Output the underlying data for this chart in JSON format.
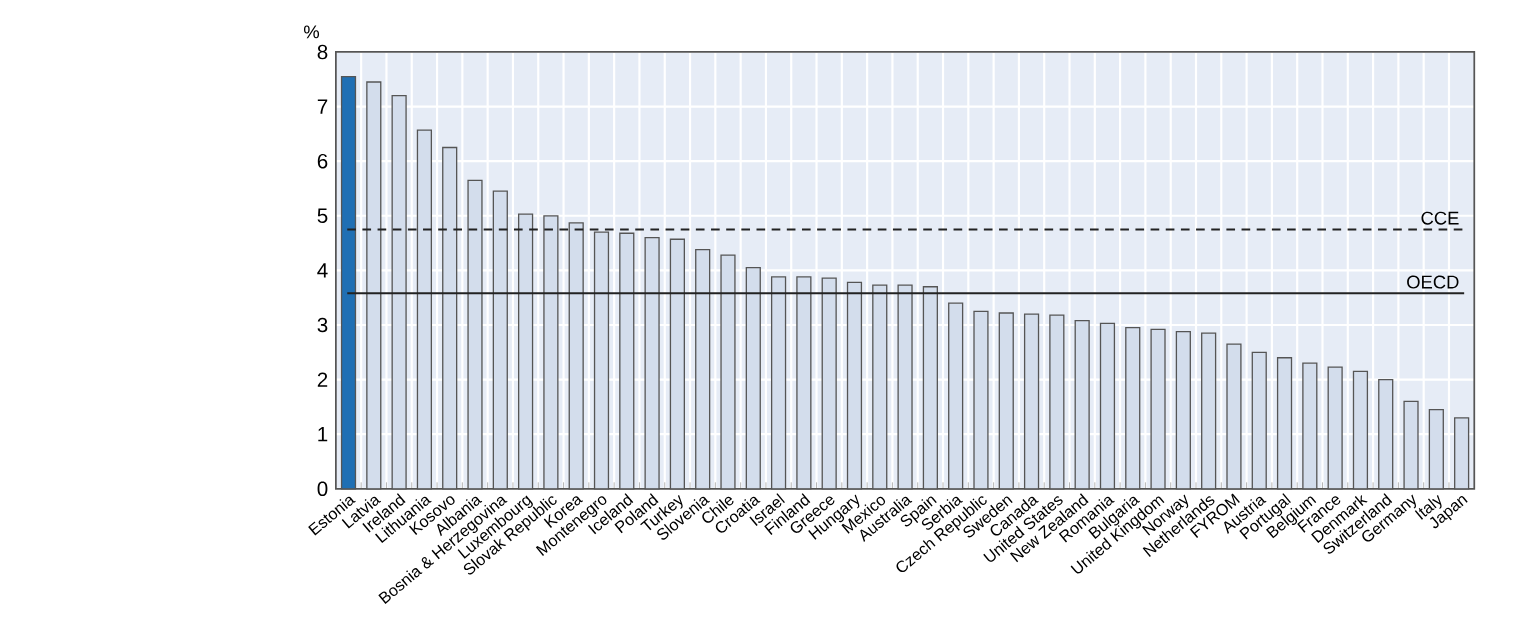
{
  "chart_data": {
    "type": "bar",
    "ylabel": "%",
    "categories": [
      "Estonia",
      "Latvia",
      "Ireland",
      "Lithuania",
      "Kosovo",
      "Albania",
      "Bosnia & Herzegovina",
      "Luxembourg",
      "Slovak Republic",
      "Korea",
      "Montenegro",
      "Iceland",
      "Poland",
      "Turkey",
      "Slovenia",
      "Chile",
      "Croatia",
      "Israel",
      "Finland",
      "Greece",
      "Hungary",
      "Mexico",
      "Australia",
      "Spain",
      "Serbia",
      "Czech Republic",
      "Sweden",
      "Canada",
      "United States",
      "New Zealand",
      "Romania",
      "Bulgaria",
      "United Kingdom",
      "Norway",
      "Netherlands",
      "FYROM",
      "Austria",
      "Portugal",
      "Belgium",
      "France",
      "Denmark",
      "Switzerland",
      "Germany",
      "Italy",
      "Japan"
    ],
    "values": [
      7.55,
      7.45,
      7.2,
      6.57,
      6.25,
      5.65,
      5.45,
      5.03,
      5.0,
      4.87,
      4.7,
      4.68,
      4.6,
      4.57,
      4.38,
      4.28,
      4.05,
      3.88,
      3.88,
      3.86,
      3.78,
      3.73,
      3.73,
      3.7,
      3.4,
      3.25,
      3.22,
      3.2,
      3.18,
      3.08,
      3.03,
      2.95,
      2.92,
      2.88,
      2.85,
      2.65,
      2.5,
      2.4,
      2.3,
      2.23,
      2.15,
      2.0,
      1.6,
      1.45,
      1.3
    ],
    "colors": [
      "#1f6fb4",
      "#d3ddec",
      "#d3ddec",
      "#d3ddec",
      "#d3ddec",
      "#d3ddec",
      "#d3ddec",
      "#d3ddec",
      "#d3ddec",
      "#d3ddec",
      "#d3ddec",
      "#d3ddec",
      "#d3ddec",
      "#d3ddec",
      "#d3ddec",
      "#d3ddec",
      "#d3ddec",
      "#d3ddec",
      "#d3ddec",
      "#d3ddec",
      "#d3ddec",
      "#d3ddec",
      "#d3ddec",
      "#d3ddec",
      "#d3ddec",
      "#d3ddec",
      "#d3ddec",
      "#d3ddec",
      "#d3ddec",
      "#d3ddec",
      "#d3ddec",
      "#d3ddec",
      "#d3ddec",
      "#d3ddec",
      "#d3ddec",
      "#d3ddec",
      "#d3ddec",
      "#d3ddec",
      "#d3ddec",
      "#d3ddec",
      "#d3ddec",
      "#d3ddec",
      "#d3ddec",
      "#d3ddec",
      "#d3ddec"
    ],
    "ylim": [
      0,
      8
    ],
    "yticks": [
      0,
      1,
      2,
      3,
      4,
      5,
      6,
      7,
      8
    ],
    "grid": true,
    "ref_lines": [
      {
        "axis": "y",
        "value": 4.75,
        "label": "CCE",
        "line_style": "dashed"
      },
      {
        "axis": "y",
        "value": 3.58,
        "label": "OECD",
        "line_style": "solid"
      }
    ]
  }
}
